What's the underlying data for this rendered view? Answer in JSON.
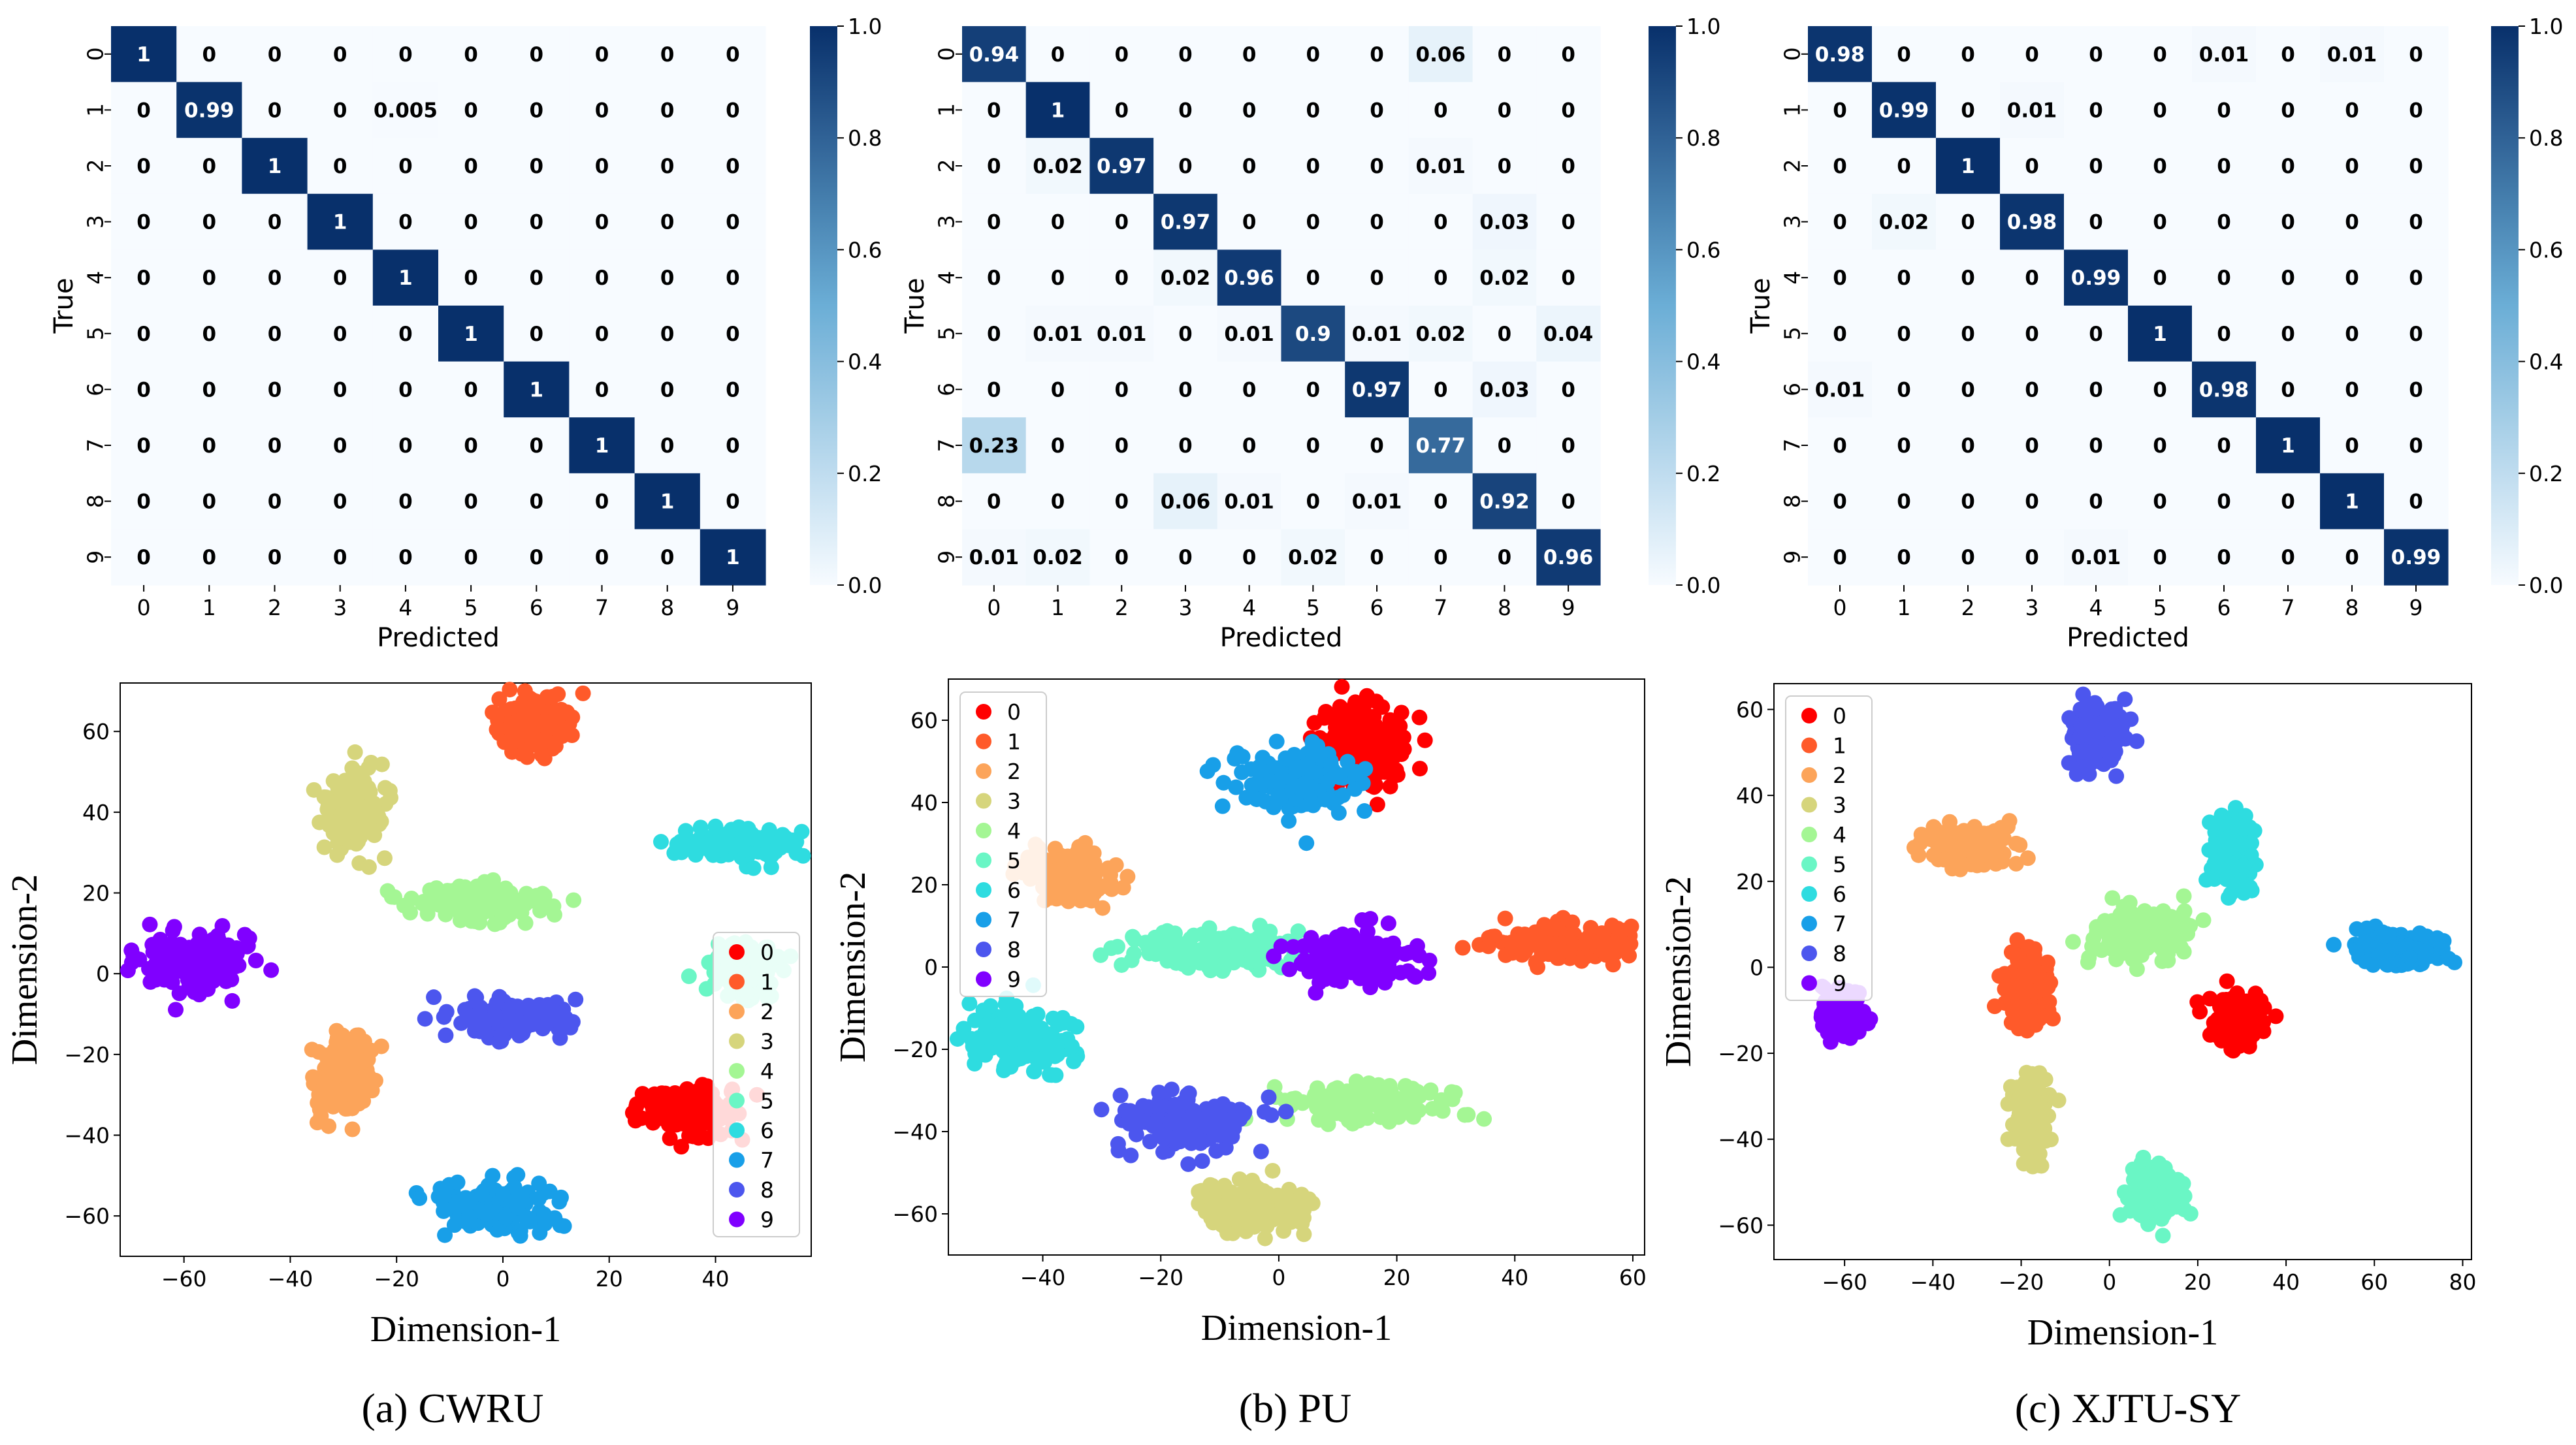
{
  "chart_data": [
    {
      "id": "cm_cwru",
      "type": "heatmap",
      "title": "",
      "xlabel": "Predicted",
      "ylabel": "True",
      "x_tick_labels": [
        "0",
        "1",
        "2",
        "3",
        "4",
        "5",
        "6",
        "7",
        "8",
        "9"
      ],
      "y_tick_labels": [
        "0",
        "1",
        "2",
        "3",
        "4",
        "5",
        "6",
        "7",
        "8",
        "9"
      ],
      "cell_labels": [
        [
          "1",
          "0",
          "0",
          "0",
          "0",
          "0",
          "0",
          "0",
          "0",
          "0"
        ],
        [
          "0",
          "0.99",
          "0",
          "0",
          "0.005",
          "0",
          "0",
          "0",
          "0",
          "0"
        ],
        [
          "0",
          "0",
          "1",
          "0",
          "0",
          "0",
          "0",
          "0",
          "0",
          "0"
        ],
        [
          "0",
          "0",
          "0",
          "1",
          "0",
          "0",
          "0",
          "0",
          "0",
          "0"
        ],
        [
          "0",
          "0",
          "0",
          "0",
          "1",
          "0",
          "0",
          "0",
          "0",
          "0"
        ],
        [
          "0",
          "0",
          "0",
          "0",
          "0",
          "1",
          "0",
          "0",
          "0",
          "0"
        ],
        [
          "0",
          "0",
          "0",
          "0",
          "0",
          "0",
          "1",
          "0",
          "0",
          "0"
        ],
        [
          "0",
          "0",
          "0",
          "0",
          "0",
          "0",
          "0",
          "1",
          "0",
          "0"
        ],
        [
          "0",
          "0",
          "0",
          "0",
          "0",
          "0",
          "0",
          "0",
          "1",
          "0"
        ],
        [
          "0",
          "0",
          "0",
          "0",
          "0",
          "0",
          "0",
          "0",
          "0",
          "1"
        ]
      ],
      "colorbar": {
        "min": 0.0,
        "max": 1.0,
        "tick_labels": [
          "0.0",
          "0.2",
          "0.4",
          "0.6",
          "0.8",
          "1.0"
        ]
      }
    },
    {
      "id": "cm_pu",
      "type": "heatmap",
      "title": "",
      "xlabel": "Predicted",
      "ylabel": "True",
      "x_tick_labels": [
        "0",
        "1",
        "2",
        "3",
        "4",
        "5",
        "6",
        "7",
        "8",
        "9"
      ],
      "y_tick_labels": [
        "0",
        "1",
        "2",
        "3",
        "4",
        "5",
        "6",
        "7",
        "8",
        "9"
      ],
      "cell_labels": [
        [
          "0.94",
          "0",
          "0",
          "0",
          "0",
          "0",
          "0",
          "0.06",
          "0",
          "0"
        ],
        [
          "0",
          "1",
          "0",
          "0",
          "0",
          "0",
          "0",
          "0",
          "0",
          "0"
        ],
        [
          "0",
          "0.02",
          "0.97",
          "0",
          "0",
          "0",
          "0",
          "0.01",
          "0",
          "0"
        ],
        [
          "0",
          "0",
          "0",
          "0.97",
          "0",
          "0",
          "0",
          "0",
          "0.03",
          "0"
        ],
        [
          "0",
          "0",
          "0",
          "0.02",
          "0.96",
          "0",
          "0",
          "0",
          "0.02",
          "0"
        ],
        [
          "0",
          "0.01",
          "0.01",
          "0",
          "0.01",
          "0.9",
          "0.01",
          "0.02",
          "0",
          "0.04"
        ],
        [
          "0",
          "0",
          "0",
          "0",
          "0",
          "0",
          "0.97",
          "0",
          "0.03",
          "0"
        ],
        [
          "0.23",
          "0",
          "0",
          "0",
          "0",
          "0",
          "0",
          "0.77",
          "0",
          "0"
        ],
        [
          "0",
          "0",
          "0",
          "0.06",
          "0.01",
          "0",
          "0.01",
          "0",
          "0.92",
          "0"
        ],
        [
          "0.01",
          "0.02",
          "0",
          "0",
          "0",
          "0.02",
          "0",
          "0",
          "0",
          "0.96"
        ]
      ],
      "colorbar": {
        "min": 0.0,
        "max": 1.0,
        "tick_labels": [
          "0.0",
          "0.2",
          "0.4",
          "0.6",
          "0.8",
          "1.0"
        ]
      }
    },
    {
      "id": "cm_xjtu",
      "type": "heatmap",
      "title": "",
      "xlabel": "Predicted",
      "ylabel": "True",
      "x_tick_labels": [
        "0",
        "1",
        "2",
        "3",
        "4",
        "5",
        "6",
        "7",
        "8",
        "9"
      ],
      "y_tick_labels": [
        "0",
        "1",
        "2",
        "3",
        "4",
        "5",
        "6",
        "7",
        "8",
        "9"
      ],
      "cell_labels": [
        [
          "0.98",
          "0",
          "0",
          "0",
          "0",
          "0",
          "0.01",
          "0",
          "0.01",
          "0"
        ],
        [
          "0",
          "0.99",
          "0",
          "0.01",
          "0",
          "0",
          "0",
          "0",
          "0",
          "0"
        ],
        [
          "0",
          "0",
          "1",
          "0",
          "0",
          "0",
          "0",
          "0",
          "0",
          "0"
        ],
        [
          "0",
          "0.02",
          "0",
          "0.98",
          "0",
          "0",
          "0",
          "0",
          "0",
          "0"
        ],
        [
          "0",
          "0",
          "0",
          "0",
          "0.99",
          "0",
          "0",
          "0",
          "0",
          "0"
        ],
        [
          "0",
          "0",
          "0",
          "0",
          "0",
          "1",
          "0",
          "0",
          "0",
          "0"
        ],
        [
          "0.01",
          "0",
          "0",
          "0",
          "0",
          "0",
          "0.98",
          "0",
          "0",
          "0"
        ],
        [
          "0",
          "0",
          "0",
          "0",
          "0",
          "0",
          "0",
          "1",
          "0",
          "0"
        ],
        [
          "0",
          "0",
          "0",
          "0",
          "0",
          "0",
          "0",
          "0",
          "1",
          "0"
        ],
        [
          "0",
          "0",
          "0",
          "0",
          "0.01",
          "0",
          "0",
          "0",
          "0",
          "0.99"
        ]
      ],
      "colorbar": {
        "min": 0.0,
        "max": 1.0,
        "tick_labels": [
          "0.0",
          "0.2",
          "0.4",
          "0.6",
          "0.8",
          "1.0"
        ]
      }
    },
    {
      "id": "tsne_cwru",
      "type": "scatter",
      "title": "",
      "caption": "(a) CWRU",
      "xlabel": "Dimension-1",
      "ylabel": "Dimension-2",
      "xlim": [
        -72,
        58
      ],
      "ylim": [
        -70,
        72
      ],
      "xticks": [
        -60,
        -40,
        -20,
        0,
        20,
        40
      ],
      "yticks": [
        -60,
        -40,
        -20,
        0,
        20,
        40,
        60
      ],
      "legend_position": "center-right",
      "clusters": [
        {
          "label": "0",
          "center": [
            34,
            -34
          ],
          "spread": [
            6,
            4
          ]
        },
        {
          "label": "1",
          "center": [
            6,
            62
          ],
          "spread": [
            5,
            5
          ]
        },
        {
          "label": "2",
          "center": [
            -30,
            -26
          ],
          "spread": [
            4,
            6
          ]
        },
        {
          "label": "3",
          "center": [
            -28,
            40
          ],
          "spread": [
            3.5,
            6
          ]
        },
        {
          "label": "4",
          "center": [
            -5,
            18
          ],
          "spread": [
            8,
            3
          ]
        },
        {
          "label": "5",
          "center": [
            45,
            0
          ],
          "spread": [
            4,
            4
          ]
        },
        {
          "label": "6",
          "center": [
            45,
            32
          ],
          "spread": [
            8,
            2.5
          ]
        },
        {
          "label": "7",
          "center": [
            -2,
            -58
          ],
          "spread": [
            7,
            4
          ]
        },
        {
          "label": "8",
          "center": [
            2,
            -11
          ],
          "spread": [
            7,
            3
          ]
        },
        {
          "label": "9",
          "center": [
            -57,
            3
          ],
          "spread": [
            7,
            5
          ]
        }
      ]
    },
    {
      "id": "tsne_pu",
      "type": "scatter",
      "title": "",
      "caption": "(b) PU",
      "xlabel": "Dimension-1",
      "ylabel": "Dimension-2",
      "xlim": [
        -56,
        62
      ],
      "ylim": [
        -70,
        70
      ],
      "xticks": [
        -40,
        -20,
        0,
        20,
        40,
        60
      ],
      "yticks": [
        -60,
        -40,
        -20,
        0,
        20,
        40,
        60
      ],
      "legend_position": "upper-left",
      "clusters": [
        {
          "label": "0",
          "center": [
            14,
            54
          ],
          "spread": [
            5,
            7
          ]
        },
        {
          "label": "1",
          "center": [
            48,
            6
          ],
          "spread": [
            9,
            3
          ]
        },
        {
          "label": "2",
          "center": [
            -35,
            22
          ],
          "spread": [
            5,
            4
          ]
        },
        {
          "label": "3",
          "center": [
            -4,
            -59
          ],
          "spread": [
            6,
            4
          ]
        },
        {
          "label": "4",
          "center": [
            15,
            -33
          ],
          "spread": [
            10,
            3
          ]
        },
        {
          "label": "5",
          "center": [
            -10,
            4
          ],
          "spread": [
            9,
            3
          ]
        },
        {
          "label": "6",
          "center": [
            -44,
            -18
          ],
          "spread": [
            6,
            5
          ]
        },
        {
          "label": "7",
          "center": [
            3,
            45
          ],
          "spread": [
            7,
            5
          ]
        },
        {
          "label": "8",
          "center": [
            -15,
            -38
          ],
          "spread": [
            7,
            5
          ]
        },
        {
          "label": "9",
          "center": [
            12,
            2
          ],
          "spread": [
            7,
            4
          ]
        }
      ]
    },
    {
      "id": "tsne_xjtu",
      "type": "scatter",
      "title": "",
      "caption": "(c) XJTU-SY",
      "xlabel": "Dimension-1",
      "ylabel": "Dimension-2",
      "xlim": [
        -76,
        82
      ],
      "ylim": [
        -68,
        66
      ],
      "xticks": [
        -60,
        -40,
        -20,
        0,
        20,
        40,
        60,
        80
      ],
      "yticks": [
        -60,
        -40,
        -20,
        0,
        20,
        40,
        60
      ],
      "legend_position": "upper-left",
      "clusters": [
        {
          "label": "0",
          "center": [
            29,
            -12
          ],
          "spread": [
            4,
            4
          ]
        },
        {
          "label": "1",
          "center": [
            -19,
            -5
          ],
          "spread": [
            3,
            6
          ]
        },
        {
          "label": "2",
          "center": [
            -32,
            28
          ],
          "spread": [
            6,
            3
          ]
        },
        {
          "label": "3",
          "center": [
            -18,
            -34
          ],
          "spread": [
            2.5,
            7
          ]
        },
        {
          "label": "4",
          "center": [
            8,
            8
          ],
          "spread": [
            7,
            4
          ]
        },
        {
          "label": "5",
          "center": [
            11,
            -53
          ],
          "spread": [
            3.5,
            4
          ]
        },
        {
          "label": "6",
          "center": [
            28,
            27
          ],
          "spread": [
            3,
            6
          ]
        },
        {
          "label": "7",
          "center": [
            66,
            4
          ],
          "spread": [
            6,
            2.5
          ]
        },
        {
          "label": "8",
          "center": [
            -3,
            54
          ],
          "spread": [
            4,
            5
          ]
        },
        {
          "label": "9",
          "center": [
            -61,
            -11
          ],
          "spread": [
            3,
            4
          ]
        }
      ]
    }
  ],
  "palette": [
    "#ff0000",
    "#ff5a2a",
    "#fca45a",
    "#d6d57c",
    "#a4f694",
    "#6af6c5",
    "#2edce0",
    "#189fe8",
    "#4c56ee",
    "#8000ff"
  ],
  "heatmap_colors": {
    "low": "#f7fbff",
    "mid": "#6baed6",
    "high": "#08306b"
  }
}
